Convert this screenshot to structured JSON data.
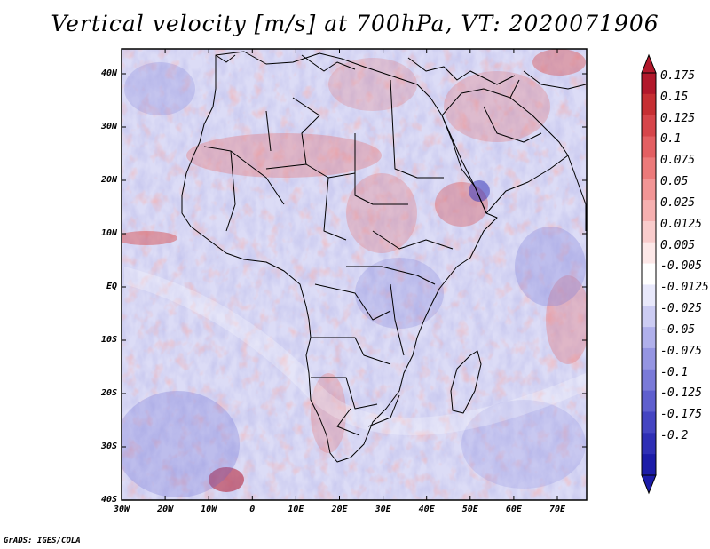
{
  "title": "Vertical velocity [m/s] at 700hPa, VT: 2020071906",
  "credit": "GrADS: IGES/COLA",
  "lat_labels": [
    "40N",
    "30N",
    "20N",
    "10N",
    "EQ",
    "10S",
    "20S",
    "30S",
    "40S"
  ],
  "lon_labels": [
    "30W",
    "20W",
    "10W",
    "0",
    "10E",
    "20E",
    "30E",
    "40E",
    "50E",
    "60E",
    "70E"
  ],
  "colorbar": {
    "labels": [
      "0.175",
      "0.15",
      "0.125",
      "0.1",
      "0.075",
      "0.05",
      "0.025",
      "0.0125",
      "0.005",
      "-0.005",
      "-0.0125",
      "-0.025",
      "-0.05",
      "-0.075",
      "-0.1",
      "-0.125",
      "-0.175",
      "-0.2"
    ],
    "colors": [
      "#b2182b",
      "#c62f33",
      "#d6454a",
      "#e35f62",
      "#ec7a7a",
      "#f29595",
      "#f6b0b0",
      "#f9cccc",
      "#fde8e8",
      "#ffffff",
      "#e8e8fb",
      "#ccccf3",
      "#b0b0eb",
      "#9595e2",
      "#7a7ad8",
      "#5f5fce",
      "#4545c2",
      "#2f2fb5",
      "#1c1ca8"
    ]
  }
}
